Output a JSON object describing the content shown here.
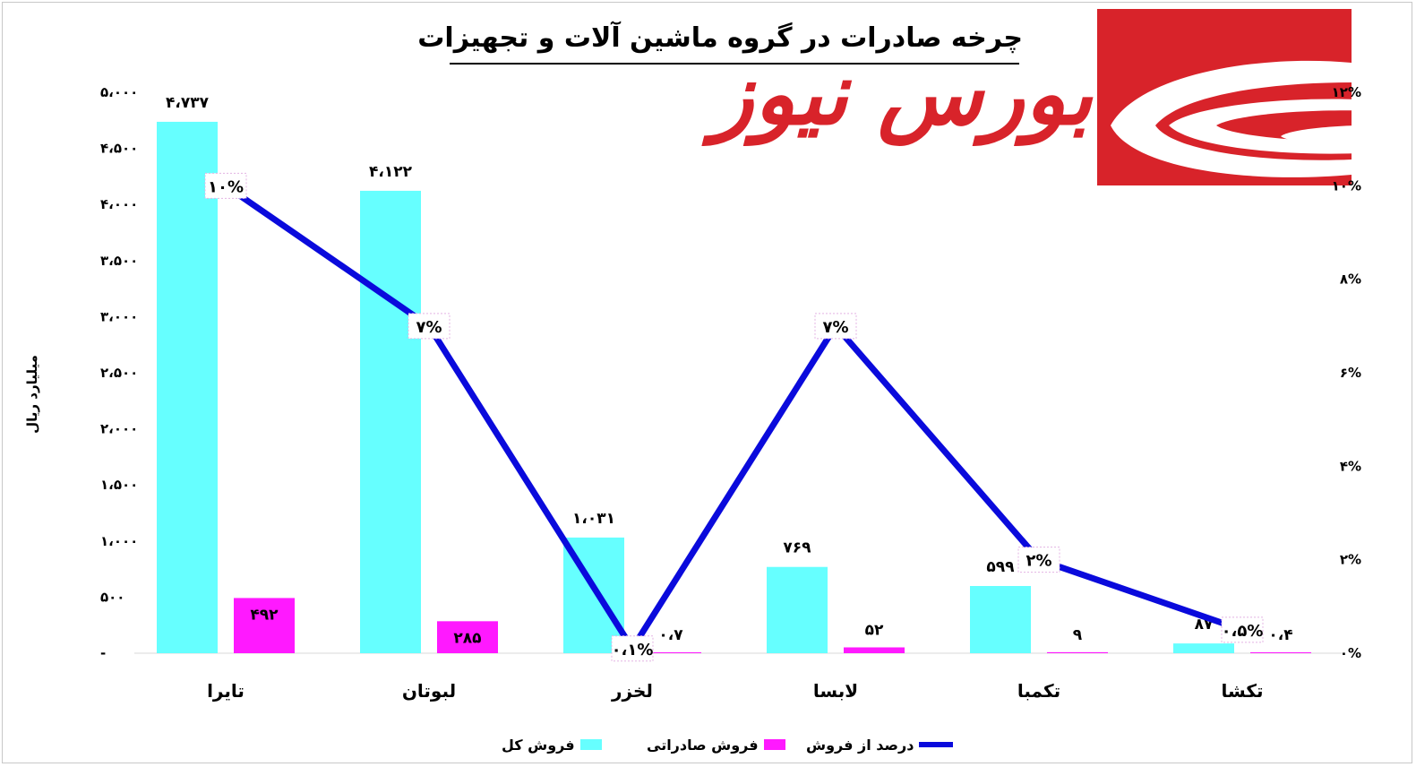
{
  "header": {
    "title": "چرخه صادرات در گروه ماشین آلات و تجهیزات",
    "logo_text": "بورس نیوز"
  },
  "colors": {
    "total_sales": "#66ffff",
    "export_sales": "#ff19ff",
    "percent_line": "#0a0adc",
    "logo_red": "#d8232a"
  },
  "chart_data": {
    "type": "bar",
    "ylabel": "میلیارد ریال",
    "categories": [
      "تایرا",
      "لبوتان",
      "لخزر",
      "لابسا",
      "تکمبا",
      "تکشا"
    ],
    "series": [
      {
        "name": "فروش کل",
        "type": "bar",
        "axis": "left",
        "values": [
          4737,
          4122,
          1031,
          769,
          599,
          87
        ],
        "labels": [
          "۴،۷۳۷",
          "۴،۱۲۲",
          "۱،۰۳۱",
          "۷۶۹",
          "۵۹۹",
          "۸۷"
        ]
      },
      {
        "name": "فروش صادراتی",
        "type": "bar",
        "axis": "left",
        "values": [
          492,
          285,
          0.7,
          52,
          9,
          0.4
        ],
        "labels": [
          "۴۹۲",
          "۲۸۵",
          "۰،۷",
          "۵۲",
          "۹",
          "۰،۴"
        ]
      },
      {
        "name": "درصد از فروش",
        "type": "line",
        "axis": "right",
        "values": [
          10,
          7,
          0.1,
          7,
          2,
          0.5
        ],
        "labels": [
          "۱۰%",
          "۷%",
          "۰،۱%",
          "۷%",
          "۲%",
          "۰،۵%"
        ]
      }
    ],
    "ylim": [
      0,
      5000
    ],
    "yticks": [
      0,
      500,
      1000,
      1500,
      2000,
      2500,
      3000,
      3500,
      4000,
      4500,
      5000
    ],
    "yticklabels": [
      "-",
      "۵۰۰",
      "۱،۰۰۰",
      "۱،۵۰۰",
      "۲،۰۰۰",
      "۲،۵۰۰",
      "۳،۰۰۰",
      "۳،۵۰۰",
      "۴،۰۰۰",
      "۴،۵۰۰",
      "۵،۰۰۰"
    ],
    "y2lim": [
      0,
      12
    ],
    "y2ticks": [
      0,
      2,
      4,
      6,
      8,
      10,
      12
    ],
    "y2ticklabels": [
      "۰%",
      "۲%",
      "۴%",
      "۶%",
      "۸%",
      "۱۰%",
      "۱۲%"
    ],
    "grid": false,
    "legend_position": "bottom"
  }
}
